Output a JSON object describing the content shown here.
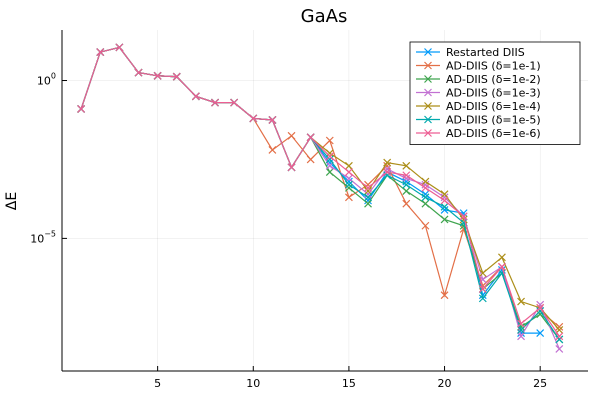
{
  "chart_data": {
    "type": "line",
    "title": "GaAs",
    "xlabel": "",
    "ylabel": "ΔE",
    "y_scale": "log10",
    "xlim": [
      0,
      27.5
    ],
    "ylim_log10": [
      -9.2,
      1.6
    ],
    "xticks": [
      5,
      10,
      15,
      20,
      25
    ],
    "yticks": [
      {
        "value_log10": 0,
        "label_base": "10",
        "label_exp": "0"
      },
      {
        "value_log10": -5,
        "label_base": "10",
        "label_exp": "−5"
      }
    ],
    "grid": true,
    "legend_position": "top-right",
    "series": [
      {
        "name": "Restarted DIIS",
        "color": "#009AFA",
        "points": [
          [
            1,
            -0.9
          ],
          [
            2,
            0.9
          ],
          [
            3,
            1.05
          ],
          [
            4,
            0.25
          ],
          [
            5,
            0.15
          ],
          [
            6,
            0.12
          ],
          [
            7,
            -0.5
          ],
          [
            8,
            -0.7
          ],
          [
            9,
            -0.7
          ],
          [
            10,
            -1.2
          ],
          [
            11,
            -1.25
          ],
          [
            12,
            -2.75
          ],
          [
            13,
            -1.8
          ],
          [
            14,
            -2.6
          ],
          [
            15,
            -3.2
          ],
          [
            16,
            -3.8
          ],
          [
            17,
            -2.9
          ],
          [
            18,
            -3.2
          ],
          [
            19,
            -3.6
          ],
          [
            20,
            -4.1
          ],
          [
            21,
            -4.2
          ],
          [
            22,
            -6.8
          ],
          [
            23,
            -6.0
          ],
          [
            24,
            -8.0
          ],
          [
            25,
            -8.0
          ]
        ]
      },
      {
        "name": "AD-DIIS (δ=1e-1)",
        "color": "#E36F47",
        "points": [
          [
            1,
            -0.9
          ],
          [
            2,
            0.9
          ],
          [
            3,
            1.05
          ],
          [
            4,
            0.25
          ],
          [
            5,
            0.15
          ],
          [
            6,
            0.12
          ],
          [
            7,
            -0.5
          ],
          [
            8,
            -0.7
          ],
          [
            9,
            -0.7
          ],
          [
            10,
            -1.2
          ],
          [
            11,
            -2.2
          ],
          [
            12,
            -1.75
          ],
          [
            13,
            -2.5
          ],
          [
            14,
            -1.9
          ],
          [
            15,
            -3.7
          ],
          [
            16,
            -3.3
          ],
          [
            17,
            -2.7
          ],
          [
            18,
            -3.9
          ],
          [
            19,
            -4.6
          ],
          [
            20,
            -6.8
          ],
          [
            21,
            -4.7
          ],
          [
            22,
            -6.5
          ],
          [
            23,
            -5.9
          ],
          [
            24,
            -7.9
          ],
          [
            25,
            -7.3
          ],
          [
            26,
            -7.8
          ]
        ]
      },
      {
        "name": "AD-DIIS (δ=1e-2)",
        "color": "#3EA44E",
        "points": [
          [
            1,
            -0.9
          ],
          [
            2,
            0.9
          ],
          [
            3,
            1.05
          ],
          [
            4,
            0.25
          ],
          [
            5,
            0.15
          ],
          [
            6,
            0.12
          ],
          [
            7,
            -0.5
          ],
          [
            8,
            -0.7
          ],
          [
            9,
            -0.7
          ],
          [
            10,
            -1.2
          ],
          [
            11,
            -1.25
          ],
          [
            12,
            -2.75
          ],
          [
            13,
            -1.8
          ],
          [
            14,
            -2.9
          ],
          [
            15,
            -3.4
          ],
          [
            16,
            -3.9
          ],
          [
            17,
            -3.0
          ],
          [
            18,
            -3.5
          ],
          [
            19,
            -3.9
          ],
          [
            20,
            -4.4
          ],
          [
            21,
            -4.6
          ],
          [
            22,
            -6.6
          ],
          [
            23,
            -6.1
          ],
          [
            24,
            -7.8
          ],
          [
            25,
            -7.4
          ],
          [
            26,
            -8.2
          ]
        ]
      },
      {
        "name": "AD-DIIS (δ=1e-3)",
        "color": "#C271D2",
        "points": [
          [
            1,
            -0.9
          ],
          [
            2,
            0.9
          ],
          [
            3,
            1.05
          ],
          [
            4,
            0.25
          ],
          [
            5,
            0.15
          ],
          [
            6,
            0.12
          ],
          [
            7,
            -0.5
          ],
          [
            8,
            -0.7
          ],
          [
            9,
            -0.7
          ],
          [
            10,
            -1.2
          ],
          [
            11,
            -1.25
          ],
          [
            12,
            -2.75
          ],
          [
            13,
            -1.8
          ],
          [
            14,
            -2.7
          ],
          [
            15,
            -3.1
          ],
          [
            16,
            -3.6
          ],
          [
            17,
            -2.8
          ],
          [
            18,
            -3.1
          ],
          [
            19,
            -3.3
          ],
          [
            20,
            -3.7
          ],
          [
            21,
            -4.3
          ],
          [
            22,
            -6.3
          ],
          [
            23,
            -5.9
          ],
          [
            24,
            -8.1
          ],
          [
            25,
            -7.1
          ],
          [
            26,
            -8.5
          ]
        ]
      },
      {
        "name": "AD-DIIS (δ=1e-4)",
        "color": "#AC8E18",
        "points": [
          [
            1,
            -0.9
          ],
          [
            2,
            0.9
          ],
          [
            3,
            1.05
          ],
          [
            4,
            0.25
          ],
          [
            5,
            0.15
          ],
          [
            6,
            0.12
          ],
          [
            7,
            -0.5
          ],
          [
            8,
            -0.7
          ],
          [
            9,
            -0.7
          ],
          [
            10,
            -1.2
          ],
          [
            11,
            -1.25
          ],
          [
            12,
            -2.75
          ],
          [
            13,
            -1.8
          ],
          [
            14,
            -2.3
          ],
          [
            15,
            -2.7
          ],
          [
            16,
            -3.5
          ],
          [
            17,
            -2.6
          ],
          [
            18,
            -2.7
          ],
          [
            19,
            -3.2
          ],
          [
            20,
            -3.6
          ],
          [
            21,
            -4.4
          ],
          [
            22,
            -6.1
          ],
          [
            23,
            -5.6
          ],
          [
            24,
            -7.0
          ],
          [
            25,
            -7.2
          ],
          [
            26,
            -7.9
          ]
        ]
      },
      {
        "name": "AD-DIIS (δ=1e-5)",
        "color": "#00A9AD",
        "points": [
          [
            1,
            -0.9
          ],
          [
            2,
            0.9
          ],
          [
            3,
            1.05
          ],
          [
            4,
            0.25
          ],
          [
            5,
            0.15
          ],
          [
            6,
            0.12
          ],
          [
            7,
            -0.5
          ],
          [
            8,
            -0.7
          ],
          [
            9,
            -0.7
          ],
          [
            10,
            -1.2
          ],
          [
            11,
            -1.25
          ],
          [
            12,
            -2.75
          ],
          [
            13,
            -1.8
          ],
          [
            14,
            -2.5
          ],
          [
            15,
            -3.3
          ],
          [
            16,
            -3.7
          ],
          [
            17,
            -3.0
          ],
          [
            18,
            -3.3
          ],
          [
            19,
            -3.7
          ],
          [
            20,
            -4.0
          ],
          [
            21,
            -4.5
          ],
          [
            22,
            -6.9
          ],
          [
            23,
            -6.1
          ],
          [
            24,
            -7.9
          ],
          [
            25,
            -7.3
          ],
          [
            26,
            -8.2
          ]
        ]
      },
      {
        "name": "AD-DIIS (δ=1e-6)",
        "color": "#ED5E93",
        "points": [
          [
            1,
            -0.9
          ],
          [
            2,
            0.9
          ],
          [
            3,
            1.05
          ],
          [
            4,
            0.25
          ],
          [
            5,
            0.15
          ],
          [
            6,
            0.12
          ],
          [
            7,
            -0.5
          ],
          [
            8,
            -0.7
          ],
          [
            9,
            -0.7
          ],
          [
            10,
            -1.2
          ],
          [
            11,
            -1.25
          ],
          [
            12,
            -2.75
          ],
          [
            13,
            -1.8
          ],
          [
            14,
            -2.4
          ],
          [
            15,
            -2.9
          ],
          [
            16,
            -3.4
          ],
          [
            17,
            -2.9
          ],
          [
            18,
            -3.0
          ],
          [
            19,
            -3.4
          ],
          [
            20,
            -3.8
          ],
          [
            21,
            -4.3
          ],
          [
            22,
            -6.6
          ],
          [
            23,
            -5.9
          ],
          [
            24,
            -7.7
          ],
          [
            25,
            -7.2
          ],
          [
            26,
            -8.1
          ]
        ]
      }
    ]
  }
}
